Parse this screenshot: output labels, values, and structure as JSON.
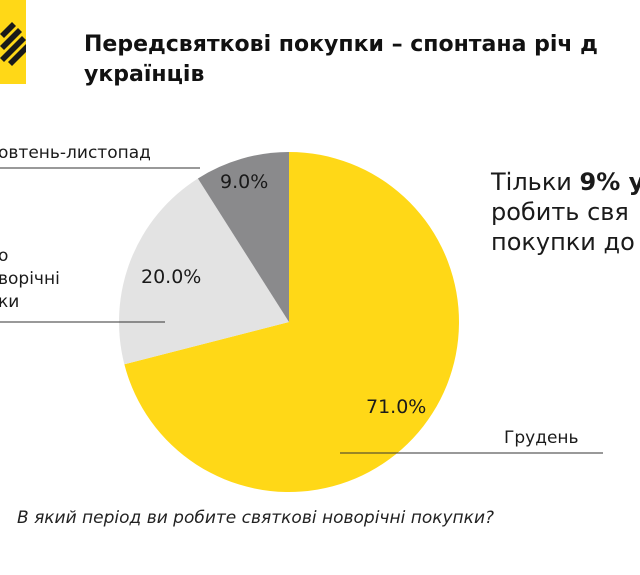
{
  "title": {
    "line1": "Передсвяткові покупки – спонтана річ д",
    "line2": "українців"
  },
  "callout": {
    "line1_prefix": "Тільки ",
    "line1_bold": "9% у",
    "line2": "робить свя",
    "line3": "покупки до"
  },
  "question": "В який період ви робите святкові новорічні покупки?",
  "colors": {
    "brand_yellow": "#ffd817",
    "light_gray": "#e3e3e3",
    "dark_gray": "#8a8a8c"
  },
  "chart_data": {
    "type": "pie",
    "slices": [
      {
        "label": "Грудень",
        "value": 71.0,
        "display": "71.0%",
        "color": "#ffd817"
      },
      {
        "label_lines": [
          "о",
          "ворічні",
          "ки"
        ],
        "value": 20.0,
        "display": "20.0%",
        "color": "#e3e3e3"
      },
      {
        "label": "овтень-листопад",
        "value": 9.0,
        "display": "9.0%",
        "color": "#8a8a8c"
      }
    ]
  }
}
